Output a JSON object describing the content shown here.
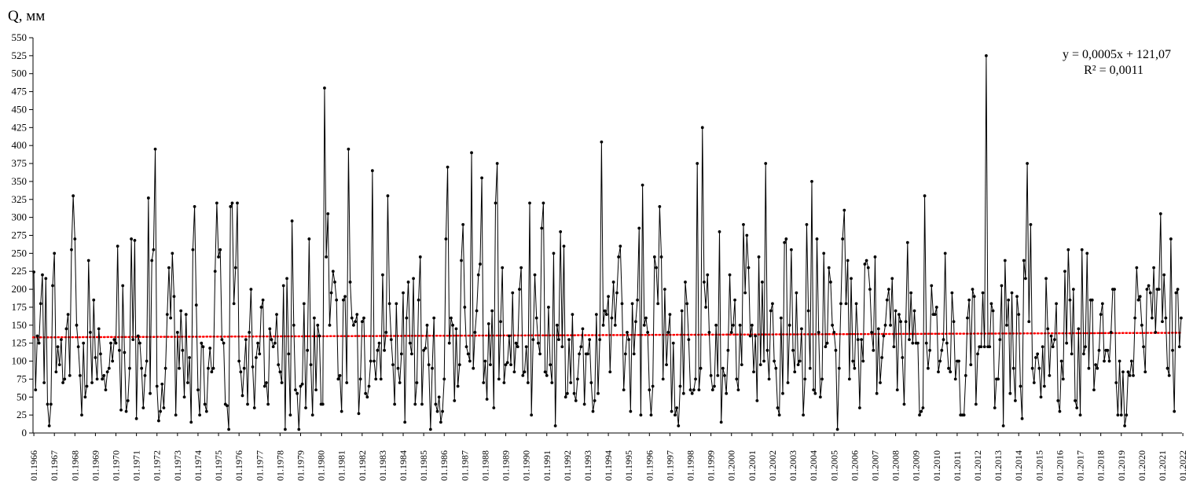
{
  "chart_data": {
    "type": "line",
    "ylabel": "Q, мм",
    "ylim": [
      0,
      550
    ],
    "yticks": [
      0,
      25,
      50,
      75,
      100,
      125,
      150,
      175,
      200,
      225,
      250,
      275,
      300,
      325,
      350,
      375,
      400,
      425,
      450,
      475,
      500,
      525,
      550
    ],
    "xticks": [
      "01.1966",
      "01.1967",
      "01.1968",
      "01.1969",
      "01.1970",
      "01.1971",
      "01.1972",
      "01.1973",
      "01.1974",
      "01.1975",
      "01.1976",
      "01.1977",
      "01.1978",
      "01.1979",
      "01.1980",
      "01.1981",
      "01.1982",
      "01.1983",
      "01.1984",
      "01.1985",
      "01.1986",
      "01.1987",
      "01.1988",
      "01.1989",
      "01.1990",
      "01.1991",
      "01.1992",
      "01.1993",
      "01.1994",
      "01.1995",
      "01.1996",
      "01.1997",
      "01.1998",
      "01.1999",
      "01.2000",
      "01.2001",
      "01.2002",
      "01.2003",
      "01.2004",
      "01.2005",
      "01.2006",
      "01.2007",
      "01.2008",
      "01.2009",
      "01.2010",
      "01.2011",
      "01.2012",
      "01.2013",
      "01.2014",
      "01.2015",
      "01.2016",
      "01.2017",
      "01.2018",
      "01.2019",
      "01.2020",
      "01.2021",
      "01.2022"
    ],
    "x_start": "01.1966",
    "x_end": "12.2022",
    "series": [
      {
        "color": "#000000",
        "values": [
          224,
          60,
          135,
          125,
          180,
          220,
          70,
          215,
          40,
          10,
          40,
          205,
          250,
          85,
          120,
          95,
          130,
          70,
          75,
          145,
          165,
          80,
          255,
          330,
          270,
          150,
          120,
          80,
          25,
          125,
          50,
          65,
          240,
          140,
          70,
          185,
          105,
          75,
          145,
          110,
          75,
          80,
          60,
          85,
          90,
          125,
          100,
          130,
          125,
          260,
          115,
          32,
          205,
          112,
          30,
          45,
          90,
          270,
          130,
          268,
          20,
          135,
          125,
          90,
          35,
          80,
          100,
          327,
          55,
          240,
          255,
          395,
          65,
          17,
          30,
          68,
          35,
          90,
          165,
          230,
          160,
          250,
          190,
          25,
          140,
          90,
          170,
          115,
          50,
          165,
          70,
          105,
          15,
          255,
          315,
          178,
          60,
          25,
          125,
          120,
          40,
          30,
          90,
          118,
          85,
          90,
          225,
          320,
          245,
          255,
          130,
          125,
          40,
          38,
          5,
          315,
          320,
          180,
          230,
          320,
          100,
          85,
          52,
          90,
          130,
          40,
          140,
          200,
          92,
          35,
          105,
          125,
          110,
          175,
          185,
          65,
          70,
          40,
          145,
          130,
          120,
          125,
          165,
          95,
          85,
          70,
          205,
          5,
          215,
          110,
          25,
          295,
          150,
          60,
          55,
          5,
          65,
          68,
          180,
          35,
          115,
          270,
          95,
          25,
          160,
          60,
          150,
          135,
          40,
          40,
          480,
          245,
          305,
          150,
          195,
          225,
          210,
          185,
          75,
          80,
          30,
          185,
          190,
          70,
          395,
          210,
          160,
          150,
          155,
          165,
          27,
          75,
          155,
          160,
          55,
          50,
          65,
          100,
          365,
          100,
          75,
          115,
          125,
          75,
          220,
          115,
          140,
          330,
          180,
          130,
          95,
          40,
          180,
          90,
          70,
          110,
          195,
          15,
          160,
          210,
          125,
          110,
          215,
          40,
          70,
          185,
          245,
          40,
          115,
          118,
          150,
          95,
          5,
          90,
          160,
          40,
          30,
          50,
          15,
          30,
          75,
          270,
          370,
          125,
          160,
          150,
          45,
          145,
          65,
          95,
          240,
          290,
          175,
          120,
          110,
          100,
          390,
          90,
          140,
          170,
          220,
          235,
          355,
          70,
          100,
          47,
          152,
          95,
          170,
          35,
          320,
          375,
          75,
          155,
          230,
          70,
          95,
          98,
          135,
          95,
          195,
          85,
          125,
          120,
          200,
          230,
          80,
          85,
          120,
          70,
          320,
          25,
          130,
          220,
          160,
          125,
          110,
          285,
          320,
          85,
          80,
          175,
          95,
          70,
          250,
          10,
          150,
          130,
          280,
          120,
          260,
          50,
          55,
          130,
          70,
          165,
          55,
          45,
          75,
          110,
          120,
          145,
          40,
          110,
          110,
          130,
          70,
          30,
          45,
          165,
          55,
          130,
          405,
          150,
          170,
          165,
          190,
          85,
          160,
          210,
          150,
          195,
          245,
          260,
          180,
          60,
          110,
          140,
          130,
          30,
          180,
          110,
          155,
          185,
          285,
          25,
          345,
          150,
          160,
          140,
          60,
          25,
          65,
          245,
          230,
          180,
          315,
          245,
          75,
          200,
          95,
          140,
          165,
          30,
          125,
          25,
          35,
          10,
          65,
          170,
          55,
          210,
          180,
          130,
          60,
          55,
          60,
          75,
          375,
          60,
          90,
          425,
          210,
          175,
          220,
          140,
          80,
          60,
          65,
          150,
          80,
          280,
          15,
          90,
          80,
          55,
          115,
          220,
          140,
          150,
          185,
          75,
          60,
          150,
          95,
          290,
          195,
          275,
          230,
          135,
          150,
          85,
          135,
          45,
          245,
          95,
          210,
          100,
          375,
          115,
          75,
          170,
          180,
          100,
          90,
          35,
          25,
          160,
          55,
          265,
          270,
          70,
          150,
          255,
          115,
          85,
          195,
          95,
          100,
          145,
          25,
          75,
          290,
          170,
          90,
          350,
          60,
          55,
          270,
          140,
          50,
          75,
          250,
          120,
          125,
          230,
          210,
          150,
          140,
          115,
          5,
          90,
          180,
          270,
          310,
          180,
          240,
          75,
          215,
          100,
          90,
          180,
          130,
          35,
          130,
          100,
          235,
          240,
          230,
          200,
          140,
          115,
          245,
          55,
          145,
          70,
          105,
          135,
          150,
          185,
          200,
          150,
          215,
          120,
          170,
          60,
          165,
          155,
          105,
          40,
          155,
          265,
          130,
          195,
          125,
          170,
          125,
          125,
          25,
          30,
          35,
          330,
          125,
          90,
          115,
          205,
          165,
          165,
          175,
          85,
          100,
          115,
          130,
          250,
          125,
          90,
          85,
          195,
          155,
          75,
          100,
          100,
          25,
          25,
          25,
          80,
          160,
          185,
          95,
          200,
          190,
          40,
          110,
          120,
          120,
          195,
          120,
          525,
          120,
          120,
          180,
          170,
          35,
          75,
          75,
          130,
          205,
          10,
          240,
          150,
          185,
          55,
          195,
          90,
          45,
          190,
          165,
          65,
          20,
          240,
          215,
          375,
          155,
          290,
          90,
          70,
          105,
          110,
          90,
          50,
          120,
          65,
          215,
          145,
          80,
          135,
          120,
          130,
          180,
          45,
          30,
          100,
          75,
          225,
          125,
          255,
          185,
          110,
          200,
          45,
          35,
          145,
          25,
          255,
          110,
          120,
          250,
          90,
          185,
          185,
          60,
          95,
          90,
          115,
          165,
          180,
          100,
          115,
          115,
          100,
          140,
          200,
          200,
          70,
          25,
          100,
          25,
          85,
          10,
          25,
          85,
          80,
          100,
          80,
          160,
          230,
          185,
          190,
          150,
          120,
          85,
          200,
          205,
          195,
          160,
          230,
          140,
          200,
          200,
          305,
          155,
          220,
          160,
          90,
          80,
          270,
          115,
          30,
          195,
          200,
          120,
          160
        ]
      }
    ],
    "trendline": {
      "equation": "y = 0,0005x + 121,07",
      "r2": "R² = 0,0011",
      "slope": 0.0005,
      "intercept": 121.07,
      "color": "#ff0000",
      "style": "dotted"
    },
    "grid": false,
    "legend": "none"
  }
}
